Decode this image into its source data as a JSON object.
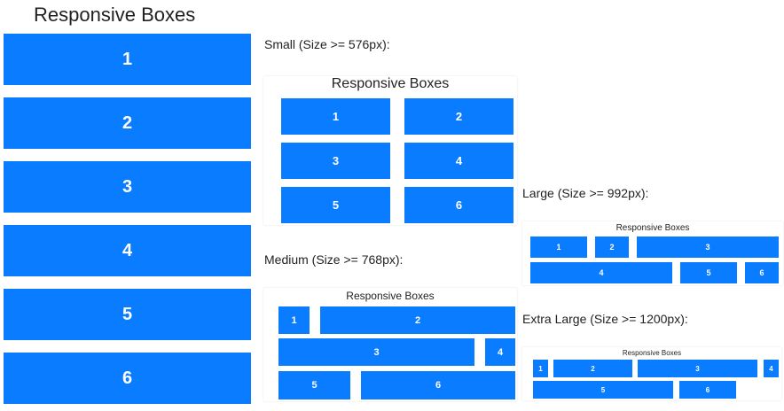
{
  "main": {
    "title": "Responsive Boxes",
    "boxes": [
      "1",
      "2",
      "3",
      "4",
      "5",
      "6"
    ]
  },
  "previews": {
    "small": {
      "label": "Small (Size >= 576px):",
      "title": "Responsive Boxes",
      "boxes": [
        "1",
        "2",
        "3",
        "4",
        "5",
        "6"
      ]
    },
    "medium": {
      "label": "Medium (Size >= 768px):",
      "title": "Responsive Boxes",
      "boxes": [
        "1",
        "2",
        "3",
        "4",
        "5",
        "6"
      ]
    },
    "large": {
      "label": "Large (Size >= 992px):",
      "title": "Responsive Boxes",
      "boxes": [
        "1",
        "2",
        "3",
        "4",
        "5",
        "6"
      ]
    },
    "xlarge": {
      "label": "Extra Large (Size >= 1200px):",
      "title": "Responsive Boxes",
      "boxes": [
        "1",
        "2",
        "3",
        "4",
        "5",
        "6"
      ]
    }
  },
  "colors": {
    "box": "#0a7cff"
  }
}
